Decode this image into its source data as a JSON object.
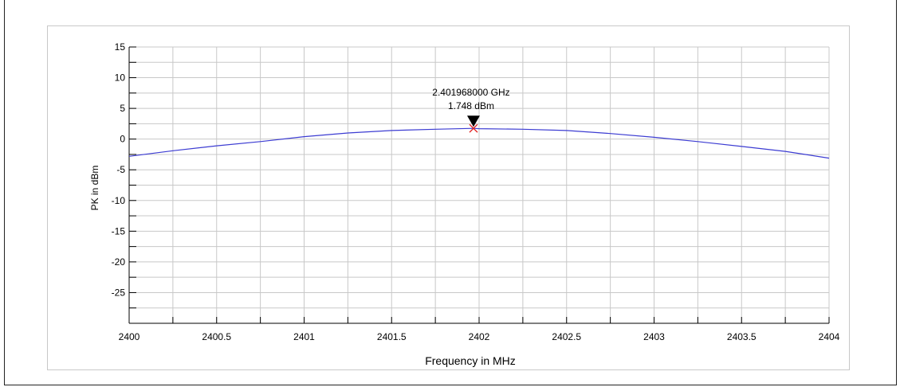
{
  "chart_data": {
    "type": "line",
    "xlabel": "Frequency in MHz",
    "ylabel": "PK in dBm",
    "xlim": [
      2400,
      2404
    ],
    "ylim": [
      -30,
      15
    ],
    "x_ticks": [
      "2400",
      "2400.5",
      "2401",
      "2401.5",
      "2402",
      "2402.5",
      "2403",
      "2403.5",
      "2404"
    ],
    "y_ticks": [
      "15",
      "10",
      "5",
      "0",
      "-5",
      "-10",
      "-15",
      "-20",
      "-25"
    ],
    "grid": true,
    "series": [
      {
        "color": "#3c3cd2",
        "x": [
          2400.0,
          2400.25,
          2400.5,
          2400.75,
          2401.0,
          2401.25,
          2401.5,
          2401.75,
          2401.968,
          2402.0,
          2402.25,
          2402.5,
          2402.75,
          2403.0,
          2403.25,
          2403.5,
          2403.75,
          2404.0
        ],
        "values": [
          -2.8,
          -1.9,
          -1.1,
          -0.4,
          0.4,
          1.0,
          1.4,
          1.6,
          1.75,
          1.7,
          1.6,
          1.4,
          0.9,
          0.3,
          -0.4,
          -1.2,
          -2.0,
          -3.1
        ]
      }
    ],
    "marker": {
      "x": 2401.968,
      "y": 1.748,
      "freq_label": "2.401968000 GHz",
      "level_label": "1.748 dBm"
    }
  }
}
